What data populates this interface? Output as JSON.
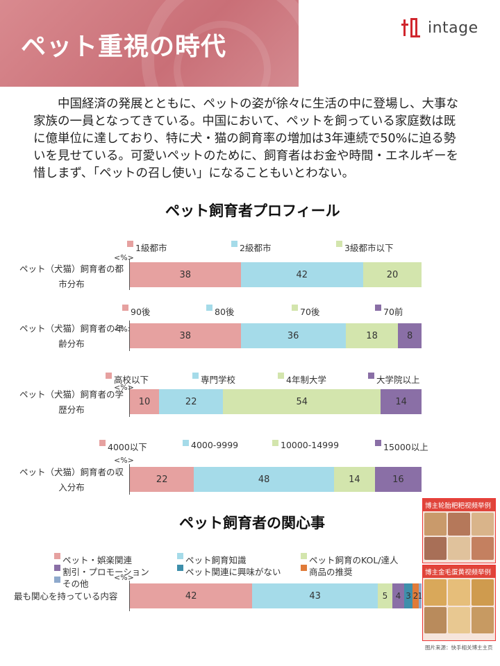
{
  "header": {
    "title": "ペット重視の時代",
    "logo_text": "intage"
  },
  "intro": "中国経済の発展とともに、ペットの姿が徐々に生活の中に登場し、大事な家族の一員となってきている。中国において、ペットを飼っている家庭数は既に億単位に達しており、特に犬・猫の飼育率の増加は3年連続で50%に迫る勢いを見せている。可愛いペットのために、飼育者はお金や時間・エネルギーを惜しまず、「ペットの召し使い」になることもいとわない。",
  "profile": {
    "title": "ペット飼育者プロフィール",
    "unit": "<%>"
  },
  "interest": {
    "title": "ペット飼育者の関心事",
    "unit": "<%>"
  },
  "side_images": [
    {
      "caption": "博主轮胎粑粑视频举例"
    },
    {
      "caption": "博主金毛蛋黄视频举例"
    }
  ],
  "source": "图片来源：快手相关博主主页",
  "colors": {
    "pink": "#e6a1a0",
    "light_blue": "#a5dbe9",
    "light_green": "#d3e5ad",
    "purple": "#8a6fa6",
    "teal": "#3e8fab",
    "orange": "#e07b39",
    "steel": "#8ea9cc",
    "header_band": "#c96f77"
  },
  "chart_data": [
    {
      "type": "bar",
      "orientation": "horizontal-stacked",
      "categories": [
        "ペット（犬猫）飼育者の都市分布"
      ],
      "series": [
        {
          "name": "1級都市",
          "values": [
            38
          ]
        },
        {
          "name": "2級都市",
          "values": [
            42
          ]
        },
        {
          "name": "3級都市以下",
          "values": [
            20
          ]
        }
      ],
      "unit_label": "<%>"
    },
    {
      "type": "bar",
      "orientation": "horizontal-stacked",
      "categories": [
        "ペット（犬猫）飼育者の年齢分布"
      ],
      "series": [
        {
          "name": "90後",
          "values": [
            38
          ]
        },
        {
          "name": "80後",
          "values": [
            36
          ]
        },
        {
          "name": "70後",
          "values": [
            18
          ]
        },
        {
          "name": "70前",
          "values": [
            8
          ]
        }
      ],
      "unit_label": "<%>"
    },
    {
      "type": "bar",
      "orientation": "horizontal-stacked",
      "categories": [
        "ペット（犬猫）飼育者の学歴分布"
      ],
      "series": [
        {
          "name": "高校以下",
          "values": [
            10
          ]
        },
        {
          "name": "専門学校",
          "values": [
            22
          ]
        },
        {
          "name": "4年制大学",
          "values": [
            54
          ]
        },
        {
          "name": "大学院以上",
          "values": [
            14
          ]
        }
      ],
      "unit_label": "<%>"
    },
    {
      "type": "bar",
      "orientation": "horizontal-stacked",
      "categories": [
        "ペット（犬猫）飼育者の収入分布"
      ],
      "series": [
        {
          "name": "4000以下",
          "values": [
            22
          ]
        },
        {
          "name": "4000-9999",
          "values": [
            48
          ]
        },
        {
          "name": "10000-14999",
          "values": [
            14
          ]
        },
        {
          "name": "15000以上",
          "values": [
            16
          ]
        }
      ],
      "unit_label": "<%>"
    },
    {
      "type": "bar",
      "orientation": "horizontal-stacked",
      "categories": [
        "最も関心を持っている内容"
      ],
      "series": [
        {
          "name": "ペット・娯楽関連",
          "values": [
            42
          ]
        },
        {
          "name": "ペット飼育知識",
          "values": [
            43
          ]
        },
        {
          "name": "ペット飼育のKOL/達人",
          "values": [
            5
          ]
        },
        {
          "name": "割引・プロモーション",
          "values": [
            4
          ]
        },
        {
          "name": "ペット関連に興味がない",
          "values": [
            3
          ]
        },
        {
          "name": "商品の推奨",
          "values": [
            2
          ]
        },
        {
          "name": "その他",
          "values": [
            1
          ]
        }
      ],
      "unit_label": "<%>"
    }
  ]
}
